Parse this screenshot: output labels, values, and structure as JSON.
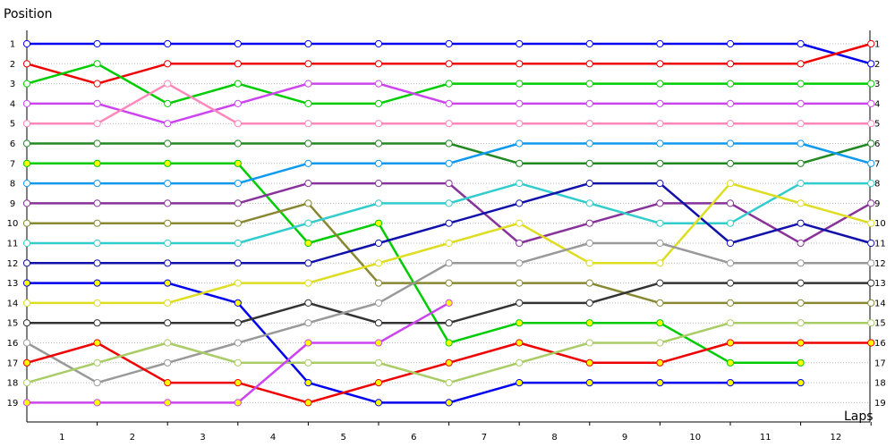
{
  "chart_data": {
    "type": "line",
    "title": "",
    "ylabel": "Position",
    "xlabel": "Laps",
    "x_ticks": [
      "1",
      "2",
      "3",
      "4",
      "5",
      "6",
      "7",
      "8",
      "9",
      "10",
      "11",
      "12"
    ],
    "y_ticks": [
      "1",
      "2",
      "3",
      "4",
      "5",
      "6",
      "7",
      "8",
      "9",
      "10",
      "11",
      "12",
      "13",
      "14",
      "15",
      "16",
      "17",
      "18",
      "19"
    ],
    "y_ticks_right": [
      "1",
      "2",
      "3",
      "4",
      "5",
      "6",
      "7",
      "8",
      "9",
      "10",
      "11",
      "12",
      "13",
      "14",
      "15",
      "16",
      "17",
      "18",
      "19"
    ],
    "ylim": [
      1,
      19
    ],
    "y_inverted": true,
    "grid": "horizontal dotted",
    "legend": "none",
    "series": [
      {
        "color": "#0000ee",
        "marker": "#ffffff",
        "values": [
          1,
          1,
          1,
          1,
          1,
          1,
          1,
          1,
          1,
          1,
          1,
          1,
          2
        ]
      },
      {
        "color": "#ee0000",
        "marker": "#ffffff",
        "values": [
          2,
          3,
          2,
          2,
          2,
          2,
          2,
          2,
          2,
          2,
          2,
          2,
          1
        ]
      },
      {
        "color": "#00cc00",
        "marker": "#ffffff",
        "values": [
          3,
          2,
          4,
          3,
          4,
          4,
          3,
          3,
          3,
          3,
          3,
          3,
          3
        ]
      },
      {
        "color": "#cc44ee",
        "marker": "#ffffff",
        "values": [
          4,
          4,
          5,
          4,
          3,
          3,
          4,
          4,
          4,
          4,
          4,
          4,
          4
        ]
      },
      {
        "color": "#ff88bb",
        "marker": "#ffffff",
        "values": [
          5,
          5,
          3,
          5,
          5,
          5,
          5,
          5,
          5,
          5,
          5,
          5,
          5
        ]
      },
      {
        "color": "#228822",
        "marker": "#ffffff",
        "values": [
          6,
          6,
          6,
          6,
          6,
          6,
          6,
          7,
          7,
          7,
          7,
          7,
          6
        ]
      },
      {
        "color": "#00cc00",
        "marker": "#ffff00",
        "values": [
          7,
          7,
          7,
          7,
          11,
          10,
          16,
          15,
          15,
          15,
          17,
          17
        ]
      },
      {
        "color": "#1199ee",
        "marker": "#ffffff",
        "values": [
          8,
          8,
          8,
          8,
          7,
          7,
          7,
          6,
          6,
          6,
          6,
          6,
          7
        ]
      },
      {
        "color": "#883399",
        "marker": "#ffffff",
        "values": [
          9,
          9,
          9,
          9,
          8,
          8,
          8,
          11,
          10,
          9,
          9,
          11,
          9
        ]
      },
      {
        "color": "#888833",
        "marker": "#ffffff",
        "values": [
          10,
          10,
          10,
          10,
          9,
          13,
          13,
          13,
          13,
          14,
          14,
          14,
          14
        ]
      },
      {
        "color": "#33cccc",
        "marker": "#ffffff",
        "values": [
          11,
          11,
          11,
          11,
          10,
          9,
          9,
          8,
          9,
          10,
          10,
          8,
          8
        ]
      },
      {
        "color": "#1111aa",
        "marker": "#ffffff",
        "values": [
          12,
          12,
          12,
          12,
          12,
          11,
          10,
          9,
          8,
          8,
          11,
          10,
          11
        ]
      },
      {
        "color": "#0000ee",
        "marker": "#ffff00",
        "values": [
          13,
          13,
          13,
          14,
          18,
          19,
          19,
          18,
          18,
          18,
          18,
          18
        ]
      },
      {
        "color": "#dddd22",
        "marker": "#ffffff",
        "values": [
          14,
          14,
          14,
          13,
          13,
          12,
          11,
          10,
          12,
          12,
          8,
          9,
          10
        ]
      },
      {
        "color": "#333333",
        "marker": "#ffffff",
        "values": [
          15,
          15,
          15,
          15,
          14,
          15,
          15,
          14,
          14,
          13,
          13,
          13,
          13
        ]
      },
      {
        "color": "#999999",
        "marker": "#ffffff",
        "values": [
          16,
          18,
          17,
          16,
          15,
          14,
          12,
          12,
          11,
          11,
          12,
          12,
          12
        ]
      },
      {
        "color": "#ee0000",
        "marker": "#ffff00",
        "values": [
          17,
          16,
          18,
          18,
          19,
          18,
          17,
          16,
          17,
          17,
          16,
          16,
          16
        ]
      },
      {
        "color": "#aacc66",
        "marker": "#ffffff",
        "values": [
          18,
          17,
          16,
          17,
          17,
          17,
          18,
          17,
          16,
          16,
          15,
          15,
          15
        ]
      },
      {
        "color": "#cc44ee",
        "marker": "#ffff00",
        "values": [
          19,
          19,
          19,
          19,
          16,
          16,
          14
        ]
      }
    ]
  }
}
